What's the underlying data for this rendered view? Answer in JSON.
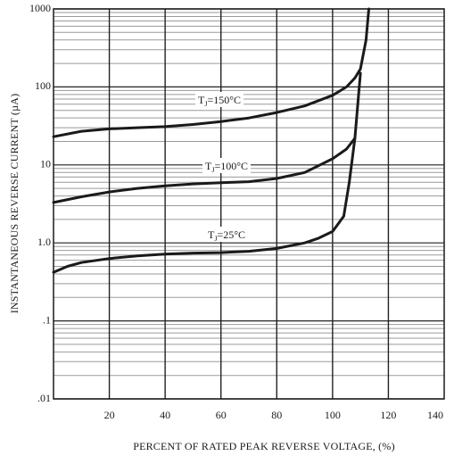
{
  "chart_data": {
    "type": "line",
    "xlabel": "PERCENT OF RATED PEAK REVERSE VOLTAGE, (%)",
    "ylabel": "INSTANTANEOUS REVERSE CURRENT (µA)",
    "xlim": [
      0,
      140
    ],
    "ylim": [
      0.01,
      1000
    ],
    "yscale": "log",
    "grid": true,
    "x_ticks": [
      "20",
      "40",
      "60",
      "80",
      "100",
      "120",
      "140"
    ],
    "y_ticks": [
      {
        "label": "1000",
        "value": 1000
      },
      {
        "label": "100",
        "value": 100
      },
      {
        "label": "10",
        "value": 10
      },
      {
        "label": "1.0",
        "value": 1
      },
      {
        "label": ".1",
        "value": 0.1
      },
      {
        "label": ".01",
        "value": 0.01
      }
    ],
    "series": [
      {
        "name": "TJ=150°C",
        "label_main": "T",
        "label_sub": "J",
        "label_rest": "=150°C",
        "x": [
          0,
          10,
          20,
          30,
          40,
          50,
          60,
          70,
          80,
          90,
          100,
          105,
          108,
          110,
          112,
          113
        ],
        "y": [
          23,
          27,
          29,
          30,
          31,
          33,
          36,
          40,
          47,
          57,
          78,
          100,
          130,
          170,
          400,
          1000
        ]
      },
      {
        "name": "TJ=100°C",
        "label_main": "T",
        "label_sub": "J",
        "label_rest": "=100°C",
        "x": [
          0,
          10,
          20,
          30,
          40,
          50,
          60,
          70,
          80,
          90,
          100,
          105,
          108,
          110
        ],
        "y": [
          3.3,
          3.9,
          4.5,
          5.0,
          5.4,
          5.7,
          5.9,
          6.1,
          6.7,
          8.0,
          12,
          16,
          22,
          150
        ]
      },
      {
        "name": "TJ=25°C",
        "label_main": "T",
        "label_sub": "J",
        "label_rest": "=25°C",
        "x": [
          0,
          5,
          10,
          20,
          30,
          40,
          50,
          60,
          70,
          80,
          90,
          95,
          100,
          104,
          106,
          108
        ],
        "y": [
          0.42,
          0.5,
          0.56,
          0.63,
          0.68,
          0.72,
          0.74,
          0.75,
          0.78,
          0.85,
          1.0,
          1.15,
          1.4,
          2.2,
          6,
          22
        ]
      }
    ]
  },
  "colors": {
    "curve": "#1a1a1a",
    "axis": "#1a1a1a",
    "grid_major": "#222222",
    "grid_minor": "#9a9a9a"
  }
}
